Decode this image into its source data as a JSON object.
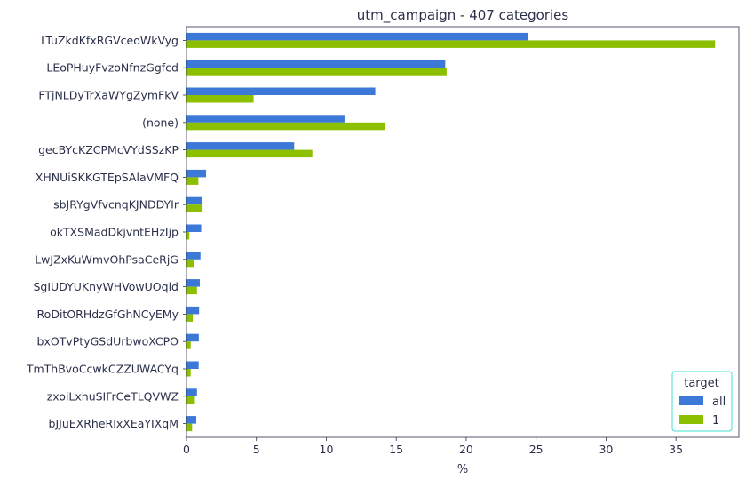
{
  "chart_data": {
    "type": "bar",
    "orientation": "horizontal",
    "title": "utm_campaign - 407 categories",
    "xlabel": "%",
    "ylabel": "",
    "xlim": [
      0,
      39.5
    ],
    "xticks": [
      0,
      5,
      10,
      15,
      20,
      25,
      30,
      35
    ],
    "grid": false,
    "legend": {
      "title": "target",
      "position": "bottom-right"
    },
    "categories": [
      "LTuZkdKfxRGVceoWkVyg",
      "LEoPHuyFvzoNfnzGgfcd",
      "FTjNLDyTrXaWYgZymFkV",
      "(none)",
      "gecBYcKZCPMcVYdSSzKP",
      "XHNUiSKKGTEpSAlaVMFQ",
      "sbJRYgVfvcnqKJNDDYIr",
      "okTXSMadDkjvntEHzIjp",
      "LwJZxKuWmvOhPsaCeRjG",
      "SgIUDYUKnyWHVowUOqid",
      "RoDitORHdzGfGhNCyEMy",
      "bxOTvPtyGSdUrbwoXCPO",
      "TmThBvoCcwkCZZUWACYq",
      "zxoiLxhuSIFrCeTLQVWZ",
      "bJJuEXRheRIxXEaYIXqM"
    ],
    "series": [
      {
        "name": "all",
        "color": "#3b78d8",
        "values": [
          24.4,
          18.5,
          13.5,
          11.3,
          7.7,
          1.4,
          1.1,
          1.05,
          1.0,
          0.95,
          0.9,
          0.88,
          0.87,
          0.75,
          0.7
        ]
      },
      {
        "name": "1",
        "color": "#8cbf00",
        "values": [
          37.8,
          18.6,
          4.8,
          14.2,
          9.0,
          0.85,
          1.15,
          0.2,
          0.55,
          0.75,
          0.45,
          0.3,
          0.3,
          0.6,
          0.4
        ]
      }
    ]
  }
}
